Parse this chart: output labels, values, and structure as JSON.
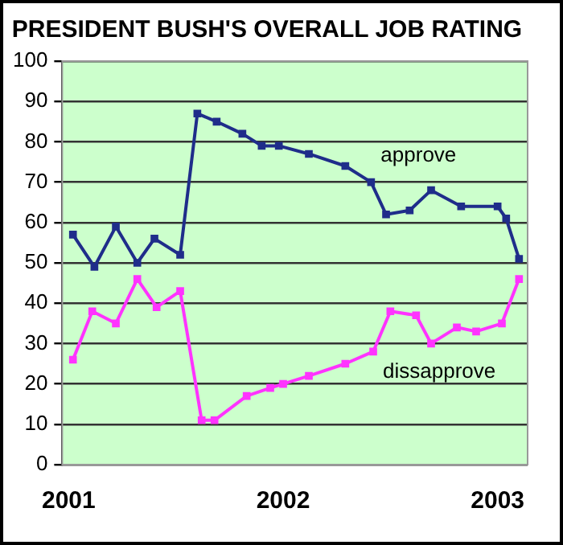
{
  "chart_data": {
    "type": "line",
    "title": "PRESIDENT BUSH'S OVERALL JOB RATING",
    "xlim": [
      2000.97,
      2003.14
    ],
    "xticks": [
      2001,
      2002,
      2003
    ],
    "ylim": [
      0,
      100
    ],
    "yticks": [
      0,
      10,
      20,
      30,
      40,
      50,
      60,
      70,
      80,
      90,
      100
    ],
    "grid": "y",
    "legend": false,
    "marker": "square",
    "line_style": "solid",
    "series": [
      {
        "name": "approve",
        "color": "#1f2d8a",
        "x": [
          2001.02,
          2001.12,
          2001.22,
          2001.32,
          2001.4,
          2001.52,
          2001.6,
          2001.69,
          2001.81,
          2001.9,
          2001.98,
          2002.12,
          2002.29,
          2002.41,
          2002.48,
          2002.59,
          2002.69,
          2002.83,
          2003.0,
          2003.04,
          2003.1
        ],
        "values": [
          57,
          49,
          59,
          50,
          56,
          52,
          87,
          85,
          82,
          79,
          79,
          77,
          74,
          70,
          62,
          63,
          68,
          64,
          64,
          61,
          51
        ]
      },
      {
        "name": "dissapprove",
        "color": "#ff33ff",
        "x": [
          2001.02,
          2001.11,
          2001.22,
          2001.32,
          2001.41,
          2001.52,
          2001.62,
          2001.68,
          2001.83,
          2001.94,
          2002.0,
          2002.12,
          2002.29,
          2002.42,
          2002.5,
          2002.62,
          2002.69,
          2002.81,
          2002.9,
          2003.02,
          2003.1
        ],
        "values": [
          26,
          38,
          35,
          46,
          39,
          43,
          11,
          11,
          17,
          19,
          20,
          22,
          25,
          28,
          38,
          37,
          30,
          34,
          33,
          35,
          46
        ]
      }
    ]
  }
}
